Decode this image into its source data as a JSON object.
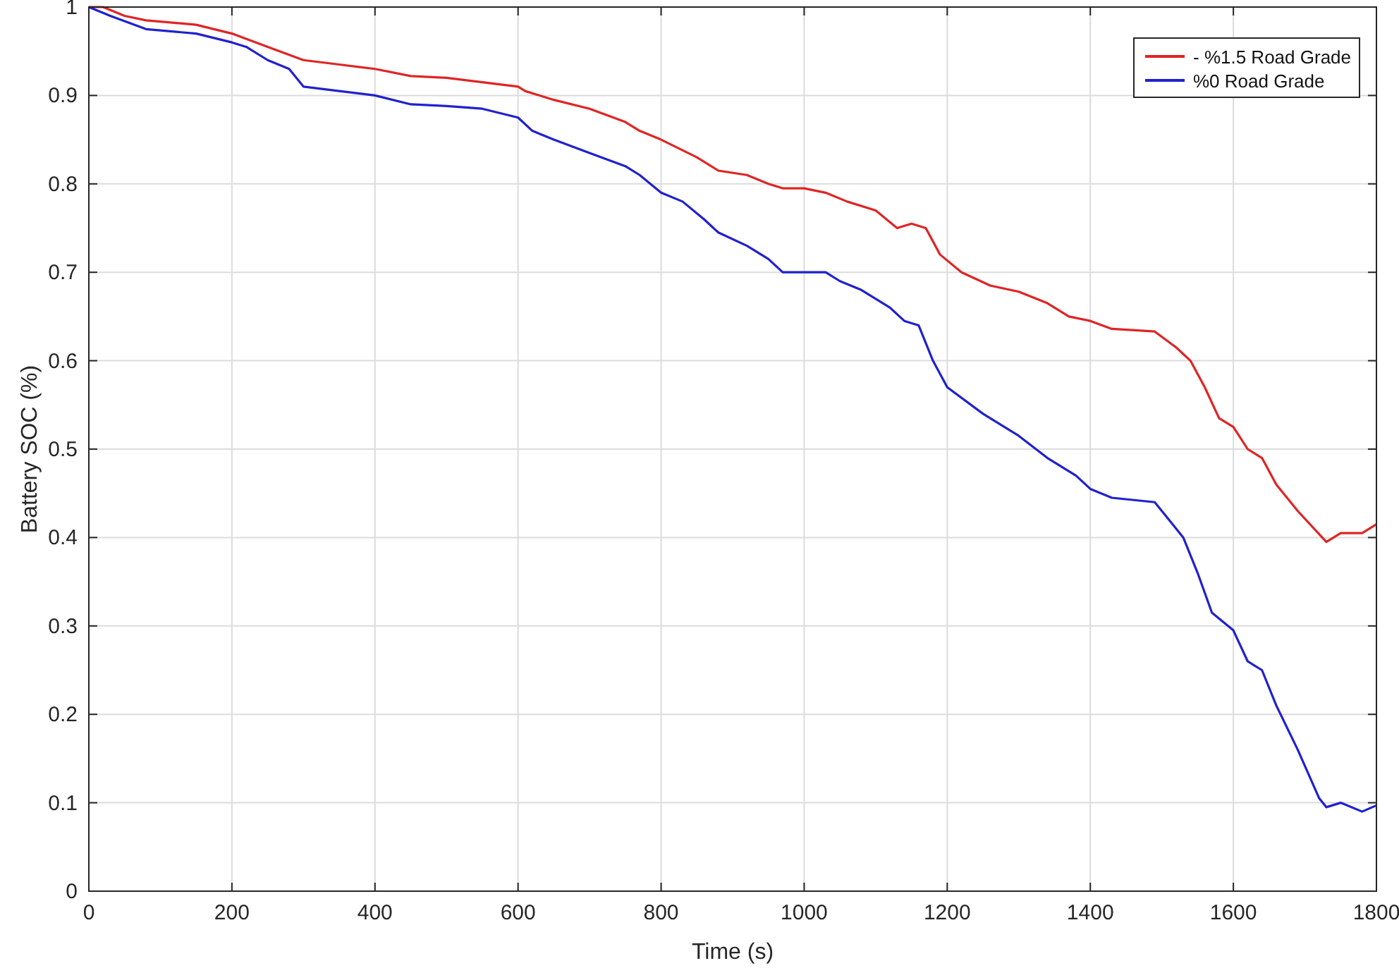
{
  "chart_data": {
    "type": "line",
    "xlabel": "Time (s)",
    "ylabel": "Battery SOC (%)",
    "xlim": [
      0,
      1800
    ],
    "xticks": [
      0,
      200,
      400,
      600,
      800,
      1000,
      1200,
      1400,
      1600,
      1800
    ],
    "ylim": [
      0,
      1
    ],
    "yticks": [
      0,
      0.1,
      0.2,
      0.3,
      0.4,
      0.5,
      0.6,
      0.7,
      0.8,
      0.9,
      1
    ],
    "grid": true,
    "legend": "top right",
    "series": [
      {
        "name": "- %1.5 Road Grade",
        "color": "#e02424",
        "x": [
          0,
          20,
          50,
          80,
          150,
          200,
          250,
          300,
          350,
          400,
          450,
          500,
          550,
          600,
          610,
          650,
          700,
          750,
          770,
          800,
          850,
          880,
          920,
          950,
          970,
          1000,
          1030,
          1060,
          1100,
          1130,
          1150,
          1170,
          1190,
          1220,
          1260,
          1300,
          1340,
          1370,
          1400,
          1430,
          1490,
          1520,
          1540,
          1560,
          1580,
          1600,
          1620,
          1640,
          1660,
          1690,
          1730,
          1750,
          1780,
          1800
        ],
        "values": [
          1,
          1,
          0.99,
          0.985,
          0.98,
          0.97,
          0.955,
          0.94,
          0.935,
          0.93,
          0.922,
          0.92,
          0.915,
          0.91,
          0.905,
          0.895,
          0.885,
          0.87,
          0.86,
          0.85,
          0.83,
          0.815,
          0.81,
          0.8,
          0.795,
          0.795,
          0.79,
          0.78,
          0.77,
          0.75,
          0.755,
          0.75,
          0.72,
          0.7,
          0.685,
          0.678,
          0.665,
          0.65,
          0.645,
          0.636,
          0.633,
          0.615,
          0.6,
          0.57,
          0.535,
          0.525,
          0.5,
          0.49,
          0.46,
          0.43,
          0.395,
          0.405,
          0.405,
          0.415
        ]
      },
      {
        "name": "%0 Road Grade",
        "color": "#2020d0",
        "x": [
          0,
          30,
          80,
          150,
          200,
          220,
          250,
          280,
          300,
          350,
          400,
          450,
          500,
          550,
          600,
          620,
          650,
          700,
          750,
          770,
          800,
          830,
          860,
          880,
          920,
          950,
          970,
          1030,
          1050,
          1080,
          1120,
          1140,
          1160,
          1180,
          1200,
          1250,
          1300,
          1340,
          1380,
          1400,
          1430,
          1490,
          1510,
          1530,
          1550,
          1570,
          1600,
          1620,
          1640,
          1660,
          1690,
          1720,
          1730,
          1750,
          1780,
          1800
        ],
        "values": [
          1,
          0.99,
          0.975,
          0.97,
          0.96,
          0.955,
          0.94,
          0.93,
          0.91,
          0.905,
          0.9,
          0.89,
          0.888,
          0.885,
          0.875,
          0.86,
          0.85,
          0.835,
          0.82,
          0.81,
          0.79,
          0.78,
          0.76,
          0.745,
          0.73,
          0.715,
          0.7,
          0.7,
          0.69,
          0.68,
          0.66,
          0.645,
          0.64,
          0.6,
          0.57,
          0.54,
          0.515,
          0.49,
          0.47,
          0.455,
          0.445,
          0.44,
          0.42,
          0.4,
          0.36,
          0.315,
          0.295,
          0.26,
          0.25,
          0.21,
          0.16,
          0.105,
          0.095,
          0.1,
          0.09,
          0.097
        ]
      }
    ]
  }
}
